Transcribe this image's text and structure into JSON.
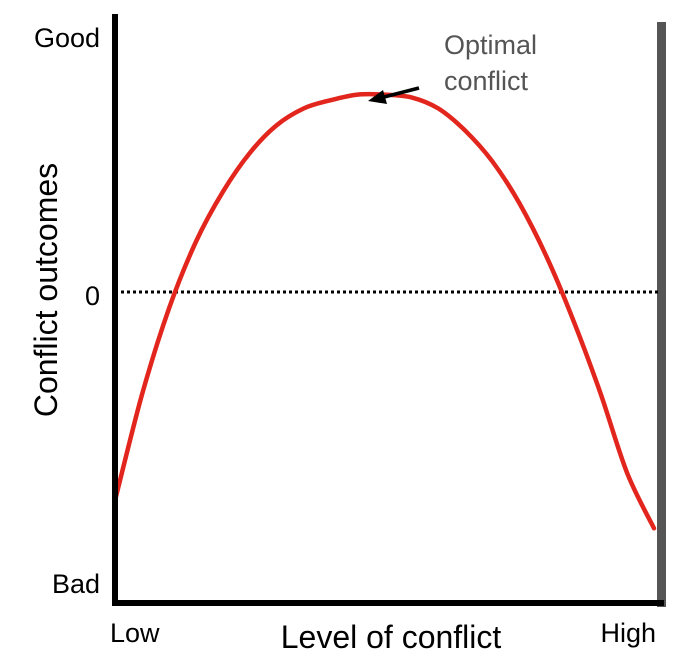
{
  "chart_data": {
    "type": "line",
    "title": "",
    "xlabel": "Level of conflict",
    "ylabel": "Conflict outcomes",
    "x_tick_labels": {
      "low": "Low",
      "high": "High"
    },
    "y_tick_labels": {
      "top": "Good",
      "zero": "0",
      "bottom": "Bad"
    },
    "x_range": [
      0,
      1
    ],
    "y_range": [
      -1,
      1
    ],
    "reference_line": {
      "y": 0,
      "style": "dotted"
    },
    "series": [
      {
        "color": "#e2261d",
        "x": [
          0.0,
          0.05,
          0.1,
          0.15,
          0.2,
          0.25,
          0.3,
          0.35,
          0.4,
          0.45,
          0.5,
          0.55,
          0.6,
          0.65,
          0.7,
          0.75,
          0.8,
          0.85,
          0.9,
          0.95,
          1.0
        ],
        "y": [
          -0.75,
          -0.37,
          -0.06,
          0.18,
          0.36,
          0.5,
          0.6,
          0.66,
          0.69,
          0.71,
          0.71,
          0.7,
          0.66,
          0.58,
          0.47,
          0.32,
          0.13,
          -0.1,
          -0.36,
          -0.65,
          -0.85
        ]
      }
    ],
    "annotation": {
      "lines": [
        "Optimal",
        "conflict"
      ],
      "points_to": {
        "x": 0.45,
        "y": 0.71
      }
    },
    "grid": false,
    "legend": "none"
  }
}
